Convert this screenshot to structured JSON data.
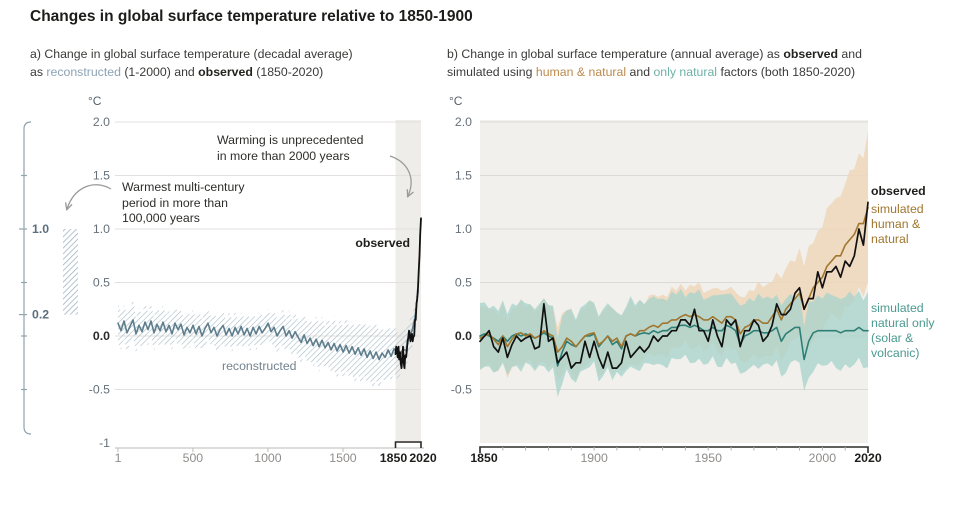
{
  "page": {
    "title": "Changes in global surface temperature relative to 1850-1900"
  },
  "subtitle_a": {
    "line1": "a) Change in global surface temperature (decadal average)",
    "l2_1": "as ",
    "l2_2": "reconstructed",
    "l2_3": " (1-2000) and ",
    "l2_4": "observed",
    "l2_5": " (1850-2020)"
  },
  "subtitle_b": {
    "l1_1": "b) Change in global surface temperature (annual average) as ",
    "l1_2": "observed",
    "l1_3": " and",
    "l2_1": "simulated using ",
    "l2_2": "human & natural",
    "l2_3": " and ",
    "l2_4": "only natural",
    "l2_5": " factors (both 1850-2020)"
  },
  "colors": {
    "text_dark": "#1d1d1b",
    "reconstructed": "#5e7d8c",
    "reconstructed_word": "#8ba3b5",
    "reconstructed_label": "#73838f",
    "hatch": "#a5bac7",
    "observed": "#111111",
    "tan_band": "#eed7bd",
    "brown": "#a1762e",
    "brown_word": "#bb8a4d",
    "teal_band": "#a9d4cc",
    "teal": "#2f7f76",
    "teal_word": "#6fb0a8",
    "teal_legend": "#4a9a90",
    "grid_a": "#e3e1de",
    "grid_b": "#dcdad6",
    "plot_bg_b": "#f1f0ed",
    "highlight_a": "#efedea",
    "axis_light": "#c8c6c3",
    "tick_label_gray": "#8f8d8a",
    "ylabel_gray": "#65707a",
    "axis_dark": "#2b2b29",
    "minor_tick": "#b3b1ae",
    "arrow": "#9b9b99",
    "bracket": "#8fa3ad",
    "side_label": "#5d6f7c"
  },
  "chart_data": [
    {
      "type": "line",
      "panel": "a",
      "title": "Change in global surface temperature (decadal average) as reconstructed (1-2000) and observed (1850-2020)",
      "unit": "°C",
      "xlim": [
        1,
        2020
      ],
      "ylim": [
        -1,
        2
      ],
      "grid": "horizontal",
      "ytick_labels": [
        "2.0",
        "1.5",
        "1.0",
        "0.5",
        "0.0",
        "-0.5",
        "-1"
      ],
      "ytick_values": [
        2.0,
        1.5,
        1.0,
        0.5,
        0.0,
        -0.5,
        -1
      ],
      "xtick_labels": [
        "1",
        "500",
        "1000",
        "1500",
        "1850",
        "2020"
      ],
      "xtick_values": [
        1,
        500,
        1000,
        1500,
        1850,
        2020
      ],
      "highlight_span": [
        1850,
        2020
      ],
      "labels": {
        "observed": "observed",
        "reconstructed": "reconstructed"
      },
      "annotations": {
        "warming": "Warming is unprecedented\nin more than 2000 years",
        "warmest": "Warmest multi-century\nperiod in more than\n100,000 years"
      },
      "side_scale": {
        "tick_labels": [
          "1.0",
          "0.2"
        ],
        "tick_values": [
          1.0,
          0.2
        ],
        "bar_range": [
          0.2,
          1.0
        ]
      },
      "series": [
        {
          "name": "reconstructed",
          "x_start": 1,
          "x_step": 20,
          "y": [
            0.12,
            0.05,
            0.14,
            0.03,
            0.09,
            0.15,
            0.02,
            0.1,
            0.04,
            0.13,
            0.06,
            0.14,
            0.03,
            0.11,
            0.05,
            0.13,
            0.04,
            0.1,
            0.02,
            0.12,
            0.06,
            0.11,
            0.01,
            0.08,
            0.03,
            0.1,
            0.02,
            0.09,
            0.0,
            0.07,
            0.12,
            0.03,
            0.08,
            0.0,
            0.06,
            0.1,
            0.01,
            0.07,
            0.0,
            0.08,
            0.02,
            0.09,
            0.01,
            0.07,
            0.0,
            0.08,
            0.02,
            0.09,
            0.03,
            0.07,
            0.12,
            0.04,
            0.08,
            0.0,
            0.05,
            0.09,
            0.0,
            0.05,
            -0.02,
            0.04,
            -0.01,
            -0.06,
            0.01,
            -0.07,
            -0.02,
            -0.09,
            -0.03,
            -0.1,
            -0.04,
            -0.11,
            -0.06,
            -0.13,
            -0.07,
            -0.14,
            -0.08,
            -0.15,
            -0.09,
            -0.16,
            -0.1,
            -0.17,
            -0.11,
            -0.18,
            -0.12,
            -0.2,
            -0.14,
            -0.21,
            -0.15,
            -0.22,
            -0.16,
            -0.2,
            -0.13,
            -0.19,
            -0.12,
            -0.16,
            -0.18,
            -0.12,
            -0.14,
            0.0,
            0.05,
            0.18,
            0.42
          ],
          "band": {
            "x": [
              1,
              500,
              1000,
              1300,
              1500,
              1700,
              1850,
              2000
            ],
            "hw": [
              0.17,
              0.15,
              0.14,
              0.2,
              0.24,
              0.27,
              0.22,
              0.12
            ],
            "jitter": 0.03
          }
        },
        {
          "name": "observed",
          "x_start": 1850,
          "x_step": 5,
          "y": [
            -0.17,
            -0.1,
            -0.12,
            -0.2,
            -0.1,
            -0.22,
            -0.15,
            -0.25,
            -0.3,
            -0.22,
            -0.1,
            -0.25,
            -0.3,
            -0.18,
            -0.2,
            -0.15,
            -0.05,
            -0.02,
            0.05,
            0.02,
            -0.05,
            0.0,
            0.02,
            -0.05,
            0.0,
            0.0,
            0.15,
            0.15,
            0.3,
            0.35,
            0.45,
            0.6,
            0.75,
            0.95,
            1.1
          ]
        }
      ]
    },
    {
      "type": "line",
      "panel": "b",
      "title": "Change in global surface temperature (annual average) as observed and simulated using human & natural and only natural factors (both 1850-2020)",
      "unit": "°C",
      "xlim": [
        1850,
        2020
      ],
      "ylim": [
        -1,
        2
      ],
      "grid": "horizontal",
      "ytick_labels": [
        "2.0",
        "1.5",
        "1.0",
        "0.5",
        "0.0",
        "-0.5"
      ],
      "ytick_values": [
        2.0,
        1.5,
        1.0,
        0.5,
        0.0,
        -0.5
      ],
      "xtick_labels": [
        "1850",
        "1900",
        "1950",
        "2000",
        "2020"
      ],
      "xtick_values": [
        1850,
        1900,
        1950,
        2000,
        2020
      ],
      "legend": {
        "observed": "observed",
        "human": "simulated\nhuman &\nnatural",
        "natural": "simulated\nnatural only\n(solar &\nvolcanic)"
      },
      "series": [
        {
          "name": "simulated human & natural",
          "x_start": 1850,
          "x_step": 2,
          "y": [
            -0.02,
            0.0,
            0.02,
            -0.03,
            -0.08,
            0.0,
            -0.1,
            -0.03,
            0.02,
            0.03,
            0.0,
            0.02,
            -0.02,
            0.0,
            0.05,
            0.02,
            0.0,
            -0.15,
            -0.1,
            -0.02,
            -0.05,
            -0.1,
            -0.05,
            0.0,
            0.02,
            0.03,
            -0.08,
            -0.05,
            0.0,
            -0.05,
            -0.02,
            -0.1,
            0.0,
            0.02,
            0.0,
            0.05,
            0.05,
            0.08,
            0.1,
            0.08,
            0.12,
            0.12,
            0.15,
            0.15,
            0.18,
            0.2,
            0.18,
            0.2,
            0.18,
            0.15,
            0.15,
            0.18,
            0.15,
            0.12,
            0.18,
            0.18,
            0.15,
            0.02,
            0.08,
            0.1,
            0.15,
            0.15,
            0.12,
            0.12,
            0.18,
            0.25,
            0.15,
            0.25,
            0.3,
            0.35,
            0.4,
            0.25,
            0.35,
            0.45,
            0.5,
            0.55,
            0.65,
            0.7,
            0.75,
            0.75,
            0.85,
            0.9,
            0.95,
            1.05,
            1.05,
            1.2
          ],
          "band": {
            "x": [
              1850,
              1960,
              1990,
              2020
            ],
            "hw": [
              0.27,
              0.28,
              0.4,
              0.68
            ],
            "jitter": 0.055
          }
        },
        {
          "name": "simulated natural only (solar & volcanic)",
          "x_start": 1850,
          "x_step": 2,
          "y": [
            0.0,
            0.02,
            0.0,
            -0.02,
            -0.05,
            0.0,
            -0.05,
            0.0,
            0.02,
            0.0,
            0.02,
            0.0,
            -0.02,
            0.0,
            0.03,
            0.0,
            -0.02,
            -0.28,
            -0.15,
            -0.05,
            -0.08,
            -0.1,
            -0.05,
            0.0,
            0.0,
            0.02,
            -0.1,
            -0.05,
            0.0,
            -0.08,
            -0.05,
            -0.12,
            0.0,
            0.02,
            0.0,
            0.02,
            0.03,
            0.02,
            0.05,
            0.03,
            0.05,
            0.05,
            0.08,
            0.08,
            0.1,
            0.1,
            0.08,
            0.1,
            0.08,
            0.05,
            0.05,
            0.08,
            0.05,
            0.05,
            0.1,
            0.08,
            0.05,
            -0.08,
            0.0,
            0.02,
            0.05,
            0.05,
            0.03,
            0.03,
            0.05,
            0.08,
            -0.05,
            0.02,
            0.05,
            0.08,
            0.08,
            -0.22,
            -0.05,
            0.03,
            0.05,
            0.05,
            0.05,
            0.05,
            0.05,
            0.03,
            0.05,
            0.05,
            0.05,
            0.08,
            0.05,
            0.05
          ],
          "band": {
            "x": [
              1850,
              2020
            ],
            "hw": [
              0.29,
              0.33
            ],
            "jitter": 0.05
          }
        },
        {
          "name": "observed",
          "x_start": 1850,
          "x_step": 2,
          "y": [
            -0.05,
            0.0,
            0.05,
            -0.1,
            -0.15,
            -0.02,
            -0.2,
            -0.08,
            0.0,
            -0.05,
            -0.02,
            0.0,
            -0.12,
            -0.1,
            0.3,
            -0.05,
            -0.02,
            -0.25,
            -0.2,
            -0.15,
            -0.3,
            -0.25,
            -0.25,
            -0.05,
            -0.2,
            -0.05,
            -0.2,
            -0.3,
            -0.15,
            -0.3,
            -0.3,
            -0.25,
            -0.05,
            -0.2,
            -0.15,
            -0.1,
            -0.15,
            -0.1,
            0.0,
            -0.05,
            0.0,
            0.0,
            0.05,
            0.05,
            0.15,
            0.15,
            0.1,
            0.25,
            0.05,
            0.05,
            -0.05,
            0.15,
            0.0,
            -0.1,
            0.15,
            0.1,
            0.15,
            -0.1,
            0.05,
            0.05,
            0.15,
            0.1,
            -0.05,
            0.0,
            0.1,
            0.3,
            0.2,
            0.2,
            0.25,
            0.4,
            0.45,
            0.25,
            0.35,
            0.35,
            0.6,
            0.45,
            0.6,
            0.6,
            0.65,
            0.55,
            0.7,
            0.65,
            0.75,
            1.0,
            0.85,
            1.25
          ]
        }
      ]
    }
  ]
}
